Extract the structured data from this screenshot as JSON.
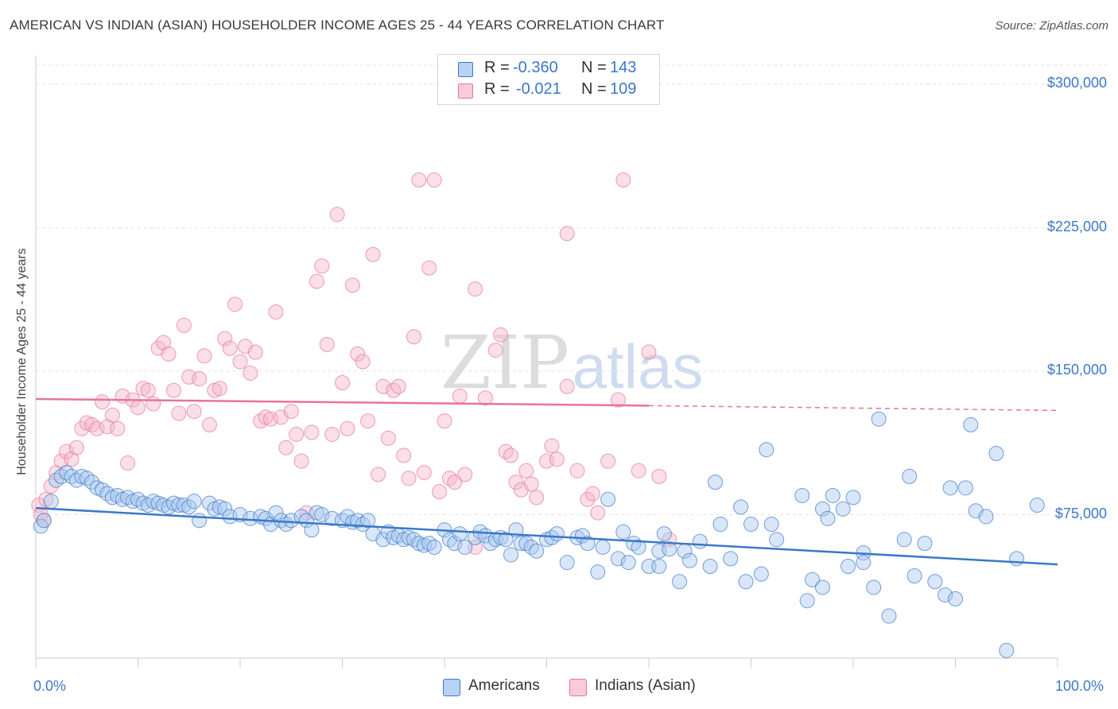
{
  "title": "AMERICAN VS INDIAN (ASIAN) HOUSEHOLDER INCOME AGES 25 - 44 YEARS CORRELATION CHART",
  "source": "Source: ZipAtlas.com",
  "watermark": {
    "zip": "ZIP",
    "atlas": "atlas"
  },
  "colors": {
    "blue": "#3b78c8",
    "blue_fill": "#a9c8f0",
    "pink": "#e8739c",
    "pink_fill": "#f4b6cc"
  },
  "stats": [
    {
      "r_label": "R =",
      "r_value": "-0.360",
      "n_label": "N =",
      "n_value": "143"
    },
    {
      "r_label": "R =",
      "r_value": "-0.021",
      "n_label": "N =",
      "n_value": "109"
    }
  ],
  "legend": [
    {
      "label": "Americans"
    },
    {
      "label": "Indians (Asian)"
    }
  ],
  "chart_data": {
    "type": "scatter",
    "title": "AMERICAN VS INDIAN (ASIAN) HOUSEHOLDER INCOME AGES 25 - 44 YEARS CORRELATION CHART",
    "xlabel": "",
    "ylabel": "Householder Income Ages 25 - 44 years",
    "xlim": [
      0,
      100
    ],
    "ylim": [
      0,
      315000
    ],
    "y_ticks": [
      75000,
      150000,
      225000,
      300000
    ],
    "y_tick_labels": [
      "$75,000",
      "$150,000",
      "$225,000",
      "$300,000"
    ],
    "x_tick_labels": [
      "0.0%",
      "100.0%"
    ],
    "grid": true,
    "legend_position": "bottom",
    "series": [
      {
        "name": "Americans",
        "color": "#3b78c8",
        "trend": {
          "x": [
            0,
            100
          ],
          "y": [
            78500,
            49000
          ]
        },
        "points": [
          [
            0.5,
            69000
          ],
          [
            0.8,
            72000
          ],
          [
            1.5,
            82000
          ],
          [
            2,
            93000
          ],
          [
            2.5,
            95000
          ],
          [
            3,
            97000
          ],
          [
            3.5,
            95000
          ],
          [
            4,
            93000
          ],
          [
            4.5,
            95000
          ],
          [
            5,
            94000
          ],
          [
            5.5,
            92000
          ],
          [
            6,
            89000
          ],
          [
            6.5,
            88000
          ],
          [
            7,
            86000
          ],
          [
            7.5,
            84000
          ],
          [
            8,
            85000
          ],
          [
            8.5,
            83000
          ],
          [
            9,
            84000
          ],
          [
            9.5,
            82000
          ],
          [
            10,
            83000
          ],
          [
            10.5,
            81000
          ],
          [
            11,
            80000
          ],
          [
            11.5,
            82000
          ],
          [
            12,
            81000
          ],
          [
            12.5,
            80000
          ],
          [
            13,
            79000
          ],
          [
            13.5,
            81000
          ],
          [
            14,
            80000
          ],
          [
            14.5,
            80000
          ],
          [
            15,
            79000
          ],
          [
            15.5,
            82000
          ],
          [
            16,
            72000
          ],
          [
            17,
            81000
          ],
          [
            17.5,
            78000
          ],
          [
            18,
            79000
          ],
          [
            18.5,
            78000
          ],
          [
            19,
            74000
          ],
          [
            20,
            75000
          ],
          [
            21,
            73000
          ],
          [
            22,
            74000
          ],
          [
            22.5,
            73000
          ],
          [
            23,
            70000
          ],
          [
            23.5,
            76000
          ],
          [
            24,
            72000
          ],
          [
            24.5,
            70000
          ],
          [
            25,
            72000
          ],
          [
            26,
            74000
          ],
          [
            26.5,
            72000
          ],
          [
            27,
            67000
          ],
          [
            27.5,
            76000
          ],
          [
            28,
            75000
          ],
          [
            29,
            73000
          ],
          [
            30,
            72000
          ],
          [
            30.5,
            74000
          ],
          [
            31,
            71000
          ],
          [
            31.5,
            72000
          ],
          [
            32,
            70000
          ],
          [
            32.5,
            72000
          ],
          [
            33,
            65000
          ],
          [
            34,
            62000
          ],
          [
            34.5,
            66000
          ],
          [
            35,
            63000
          ],
          [
            35.5,
            64000
          ],
          [
            36,
            62000
          ],
          [
            36.5,
            63000
          ],
          [
            37,
            62000
          ],
          [
            37.5,
            60000
          ],
          [
            38,
            59000
          ],
          [
            38.5,
            60000
          ],
          [
            39,
            58000
          ],
          [
            40,
            67000
          ],
          [
            40.5,
            62000
          ],
          [
            41,
            60000
          ],
          [
            41.5,
            65000
          ],
          [
            42,
            58000
          ],
          [
            43,
            63000
          ],
          [
            43.5,
            66000
          ],
          [
            44,
            64000
          ],
          [
            44.5,
            60000
          ],
          [
            45,
            62000
          ],
          [
            45.5,
            63000
          ],
          [
            46,
            62000
          ],
          [
            46.5,
            54000
          ],
          [
            47,
            67000
          ],
          [
            47.5,
            60000
          ],
          [
            48,
            60000
          ],
          [
            48.5,
            58000
          ],
          [
            49,
            56000
          ],
          [
            50,
            62000
          ],
          [
            50.5,
            63000
          ],
          [
            51,
            65000
          ],
          [
            52,
            50000
          ],
          [
            53,
            63000
          ],
          [
            53.5,
            64000
          ],
          [
            54,
            60000
          ],
          [
            55,
            45000
          ],
          [
            55.5,
            58000
          ],
          [
            56,
            83000
          ],
          [
            57,
            52000
          ],
          [
            57.5,
            66000
          ],
          [
            58,
            50000
          ],
          [
            58.5,
            60000
          ],
          [
            59,
            58000
          ],
          [
            60,
            48000
          ],
          [
            61,
            56000
          ],
          [
            61.5,
            65000
          ],
          [
            62,
            57000
          ],
          [
            63,
            40000
          ],
          [
            63.5,
            56000
          ],
          [
            64,
            51000
          ],
          [
            65,
            61000
          ],
          [
            66,
            48000
          ],
          [
            66.5,
            92000
          ],
          [
            67,
            70000
          ],
          [
            68,
            52000
          ],
          [
            69,
            79000
          ],
          [
            69.5,
            40000
          ],
          [
            70,
            70000
          ],
          [
            71,
            44000
          ],
          [
            71.5,
            109000
          ],
          [
            72,
            70000
          ],
          [
            72.5,
            62000
          ],
          [
            75,
            85000
          ],
          [
            75.5,
            30000
          ],
          [
            76,
            41000
          ],
          [
            77,
            78000
          ],
          [
            77.5,
            73000
          ],
          [
            79,
            78000
          ],
          [
            79.5,
            48000
          ],
          [
            80,
            84000
          ],
          [
            81,
            55000
          ],
          [
            82,
            37000
          ],
          [
            82.5,
            125000
          ],
          [
            83.5,
            22000
          ],
          [
            85,
            62000
          ],
          [
            85.5,
            95000
          ],
          [
            86,
            43000
          ],
          [
            87,
            60000
          ],
          [
            88,
            40000
          ],
          [
            89,
            33000
          ],
          [
            89.5,
            89000
          ],
          [
            90,
            31000
          ],
          [
            91,
            89000
          ],
          [
            91.5,
            122000
          ],
          [
            92,
            77000
          ],
          [
            93,
            74000
          ],
          [
            94,
            107000
          ],
          [
            96,
            52000
          ],
          [
            98,
            80000
          ],
          [
            78,
            85000
          ],
          [
            61,
            48000
          ],
          [
            77,
            37000
          ],
          [
            81,
            50000
          ],
          [
            95,
            4000
          ]
        ]
      },
      {
        "name": "Indians (Asian)",
        "color": "#e8739c",
        "trend": {
          "x": [
            0,
            60,
            100
          ],
          "y": [
            135500,
            132000,
            129500
          ]
        },
        "points": [
          [
            0.3,
            80000
          ],
          [
            0.5,
            75000
          ],
          [
            0.8,
            72000
          ],
          [
            1,
            83000
          ],
          [
            1.5,
            90000
          ],
          [
            2,
            97000
          ],
          [
            2.5,
            103000
          ],
          [
            3,
            108000
          ],
          [
            3.5,
            104000
          ],
          [
            4,
            110000
          ],
          [
            4.5,
            120000
          ],
          [
            5,
            123000
          ],
          [
            5.5,
            122000
          ],
          [
            6,
            120000
          ],
          [
            6.5,
            134000
          ],
          [
            7,
            121000
          ],
          [
            7.5,
            127000
          ],
          [
            8,
            120000
          ],
          [
            8.5,
            137000
          ],
          [
            9,
            102000
          ],
          [
            9.5,
            135000
          ],
          [
            10,
            131000
          ],
          [
            10.5,
            141000
          ],
          [
            11,
            140000
          ],
          [
            11.5,
            133000
          ],
          [
            12,
            162000
          ],
          [
            12.5,
            165000
          ],
          [
            13,
            159000
          ],
          [
            13.5,
            140000
          ],
          [
            14,
            128000
          ],
          [
            14.5,
            174000
          ],
          [
            15,
            147000
          ],
          [
            15.5,
            129000
          ],
          [
            16,
            146000
          ],
          [
            16.5,
            158000
          ],
          [
            17,
            122000
          ],
          [
            17.5,
            140000
          ],
          [
            18,
            141000
          ],
          [
            18.5,
            167000
          ],
          [
            19,
            162000
          ],
          [
            19.5,
            185000
          ],
          [
            20,
            155000
          ],
          [
            20.5,
            163000
          ],
          [
            21,
            149000
          ],
          [
            21.5,
            160000
          ],
          [
            22,
            124000
          ],
          [
            22.5,
            126000
          ],
          [
            23,
            125000
          ],
          [
            23.5,
            181000
          ],
          [
            24,
            126000
          ],
          [
            24.5,
            110000
          ],
          [
            25,
            129000
          ],
          [
            25.5,
            117000
          ],
          [
            26,
            103000
          ],
          [
            26.5,
            76000
          ],
          [
            27,
            118000
          ],
          [
            27.5,
            197000
          ],
          [
            28,
            205000
          ],
          [
            28.5,
            164000
          ],
          [
            29,
            117000
          ],
          [
            29.5,
            232000
          ],
          [
            30,
            144000
          ],
          [
            30.5,
            120000
          ],
          [
            31,
            195000
          ],
          [
            31.5,
            159000
          ],
          [
            32,
            155000
          ],
          [
            32.5,
            124000
          ],
          [
            33,
            211000
          ],
          [
            33.5,
            96000
          ],
          [
            34,
            142000
          ],
          [
            34.5,
            115000
          ],
          [
            35,
            140000
          ],
          [
            35.5,
            142000
          ],
          [
            36,
            106000
          ],
          [
            36.5,
            94000
          ],
          [
            37,
            168000
          ],
          [
            37.5,
            250000
          ],
          [
            38,
            97000
          ],
          [
            38.5,
            204000
          ],
          [
            39,
            250000
          ],
          [
            39.5,
            87000
          ],
          [
            40,
            124000
          ],
          [
            40.5,
            94000
          ],
          [
            41,
            92000
          ],
          [
            41.5,
            137000
          ],
          [
            42,
            96000
          ],
          [
            43,
            193000
          ],
          [
            44,
            136000
          ],
          [
            45,
            161000
          ],
          [
            45.5,
            169000
          ],
          [
            46,
            108000
          ],
          [
            46.5,
            106000
          ],
          [
            47,
            92000
          ],
          [
            47.5,
            88000
          ],
          [
            48,
            98000
          ],
          [
            48.5,
            91000
          ],
          [
            49,
            84000
          ],
          [
            50,
            103000
          ],
          [
            50.5,
            111000
          ],
          [
            51,
            104000
          ],
          [
            52,
            142000
          ],
          [
            53,
            98000
          ],
          [
            54,
            83000
          ],
          [
            54.5,
            86000
          ],
          [
            55,
            76000
          ],
          [
            56,
            103000
          ],
          [
            57,
            135000
          ],
          [
            57.5,
            250000
          ],
          [
            59,
            98000
          ],
          [
            60,
            160000
          ],
          [
            61,
            95000
          ],
          [
            62,
            62000
          ],
          [
            52,
            222000
          ],
          [
            43,
            58000
          ]
        ]
      }
    ]
  }
}
